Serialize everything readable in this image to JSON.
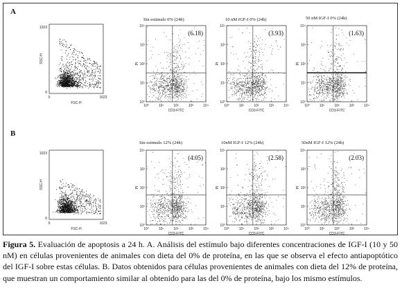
{
  "panels": [
    {
      "letter": "A",
      "scatter": {
        "ylabel": "SSC-H",
        "xlabel": "FSC-H",
        "ytick_top": "1023",
        "ytick_bottom": "0",
        "xtick_left": "0",
        "xtick_right": "1023"
      },
      "quads": [
        {
          "title": "Sin estimulo  0% (24h)",
          "value": "(6.18)"
        },
        {
          "title": "10 nM IGF-I  0% (24h)",
          "value": "(3.93)"
        },
        {
          "title": "50 nM IGF-I  0% (24h)",
          "value": "(1.63)"
        }
      ]
    },
    {
      "letter": "B",
      "scatter": {
        "ylabel": "SSC-H",
        "xlabel": "FSC-H",
        "ytick_top": "1023",
        "ytick_bottom": "0",
        "xtick_left": "0",
        "xtick_right": "1023"
      },
      "quads": [
        {
          "title": "Sin estimulo  12% (24h)",
          "value": "(4.05)"
        },
        {
          "title": "10nM IGF-I  12% (24h)",
          "value": "(2.58)"
        },
        {
          "title": "50nM IGF-I  12% (24h)",
          "value": "(2.03)"
        }
      ]
    }
  ],
  "quad_axes": {
    "ylabel": "PI",
    "xlabel": "CD3-FITC",
    "yticks": [
      "10⁰",
      "10¹",
      "10²",
      "10³",
      "10⁴"
    ],
    "xticks": [
      "10⁰",
      "10¹",
      "10²",
      "10³",
      "10⁴"
    ]
  },
  "caption": {
    "label": "Figura 5.",
    "text": " Evaluación de apoptosis a 24 h. A. Análisis del estímulo bajo diferentes concentraciones de IGF-I (10 y 50 nM) en células provenientes de animales con dieta del 0% de proteína, en las que se observa el efecto antiapoptótico del IGF-I sobre estas células. B. Datos obtenidos para células provenientes de animales con dieta del 12% de proteína, que muestran un comportamiento similar al obtenido para las del 0% de proteína, bajo los mismo estímulos."
  }
}
